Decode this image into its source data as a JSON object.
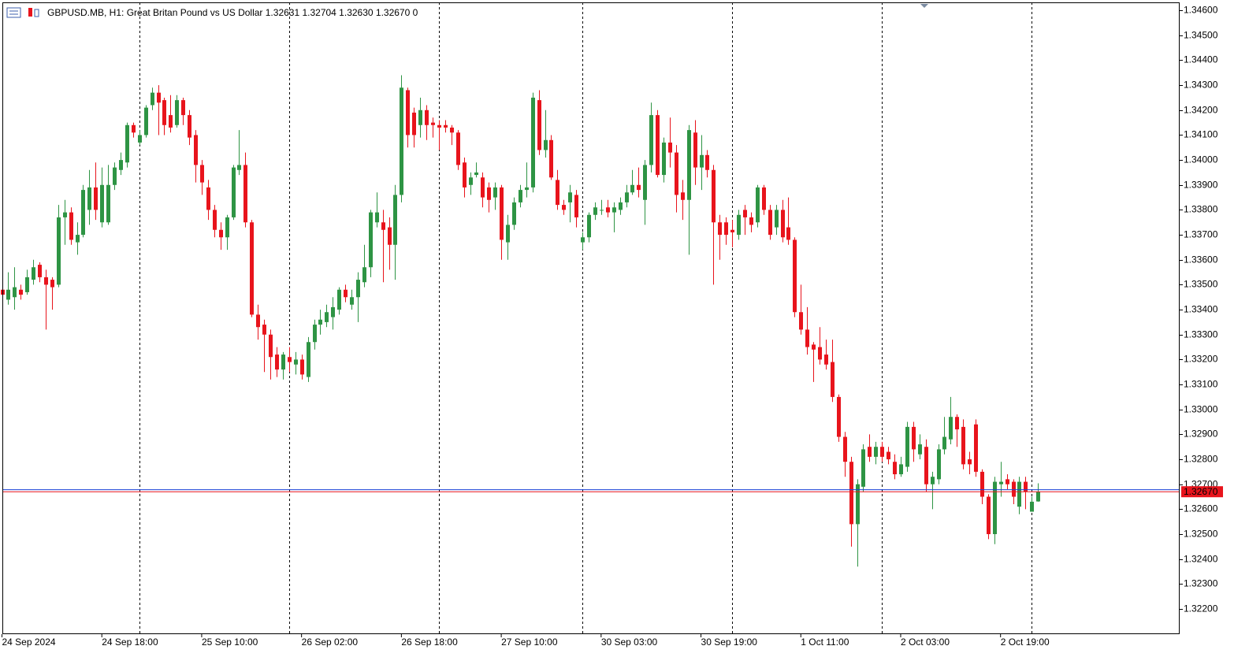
{
  "chart_data": {
    "type": "candlestick",
    "header": "GBPUSD.MB, H1:  Great Britan Pound vs US Dollar  1.32631 1.32704 1.32630 1.32670  0",
    "up_color": "#2e9444",
    "down_color": "#e8141c",
    "ylim": [
      1.32099,
      1.34632
    ],
    "yticks": [
      {
        "value": 1.346,
        "label": "1.34600"
      },
      {
        "value": 1.345,
        "label": "1.34500"
      },
      {
        "value": 1.344,
        "label": "1.34400"
      },
      {
        "value": 1.343,
        "label": "1.34300"
      },
      {
        "value": 1.342,
        "label": "1.34200"
      },
      {
        "value": 1.341,
        "label": "1.34100"
      },
      {
        "value": 1.34,
        "label": "1.34000"
      },
      {
        "value": 1.339,
        "label": "1.33900"
      },
      {
        "value": 1.338,
        "label": "1.33800"
      },
      {
        "value": 1.337,
        "label": "1.33700"
      },
      {
        "value": 1.336,
        "label": "1.33600"
      },
      {
        "value": 1.335,
        "label": "1.33500"
      },
      {
        "value": 1.334,
        "label": "1.33400"
      },
      {
        "value": 1.333,
        "label": "1.33300"
      },
      {
        "value": 1.332,
        "label": "1.33200"
      },
      {
        "value": 1.331,
        "label": "1.33100"
      },
      {
        "value": 1.33,
        "label": "1.33000"
      },
      {
        "value": 1.329,
        "label": "1.32900"
      },
      {
        "value": 1.328,
        "label": "1.32800"
      },
      {
        "value": 1.327,
        "label": "1.32700"
      },
      {
        "value": 1.326,
        "label": "1.32600"
      },
      {
        "value": 1.325,
        "label": "1.32500"
      },
      {
        "value": 1.324,
        "label": "1.32400"
      },
      {
        "value": 1.323,
        "label": "1.32300"
      },
      {
        "value": 1.322,
        "label": "1.32200"
      }
    ],
    "bid_line": {
      "value": 1.3267,
      "label": "1.32670",
      "color": "#e8141c"
    },
    "ask_line": {
      "value": 1.32678,
      "color": "#1a3fd6"
    },
    "categories": [
      "24 Sep 2024",
      null,
      null,
      null,
      null,
      null,
      null,
      null,
      null,
      null,
      null,
      null,
      null,
      null,
      null,
      null,
      "24 Sep 18:00",
      null,
      null,
      null,
      null,
      null,
      null,
      null,
      null,
      null,
      null,
      null,
      null,
      null,
      null,
      null,
      "25 Sep 10:00",
      null,
      null,
      null,
      null,
      null,
      null,
      null,
      null,
      null,
      null,
      null,
      null,
      null,
      null,
      null,
      "26 Sep 02:00",
      null,
      null,
      null,
      null,
      null,
      null,
      null,
      null,
      null,
      null,
      null,
      null,
      null,
      null,
      null,
      "26 Sep 18:00",
      null,
      null,
      null,
      null,
      null,
      null,
      null,
      null,
      null,
      null,
      null,
      null,
      null,
      null,
      null,
      "27 Sep 10:00",
      null,
      null,
      null,
      null,
      null,
      null,
      null,
      null,
      null,
      null,
      null,
      null,
      null,
      null,
      null,
      "30 Sep 03:00",
      null,
      null,
      null,
      null,
      null,
      null,
      null,
      null,
      null,
      null,
      null,
      null,
      null,
      null,
      null,
      "30 Sep 19:00",
      null,
      null,
      null,
      null,
      null,
      null,
      null,
      null,
      null,
      null,
      null,
      null,
      null,
      null,
      null,
      "1 Oct 11:00",
      null,
      null,
      null,
      null,
      null,
      null,
      null,
      null,
      null,
      null,
      null,
      null,
      null,
      null,
      null,
      "2 Oct 03:00",
      null,
      null,
      null,
      null,
      null,
      null,
      null,
      null,
      null,
      null,
      null,
      null,
      null,
      null,
      null,
      "2 Oct 19:00",
      null,
      null,
      null,
      null,
      null,
      null
    ],
    "open": [
      1.3348,
      1.3344,
      1.3345,
      1.3348,
      1.3347,
      1.3352,
      1.3358,
      1.3353,
      1.3352,
      1.335,
      1.3377,
      1.3379,
      1.3367,
      1.337,
      1.338,
      1.3389,
      1.3375,
      1.3375,
      1.339,
      1.3396,
      1.3399,
      1.3414,
      1.3407,
      1.341,
      1.3422,
      1.3427,
      1.3424,
      1.3418,
      1.3414,
      1.3424,
      1.3418,
      1.341,
      1.3398,
      1.3389,
      1.338,
      1.3372,
      1.3369,
      1.3377,
      1.3396,
      1.3398,
      1.3375,
      1.3338,
      1.3334,
      1.333,
      1.3322,
      1.3316,
      1.3321,
      1.3318,
      1.332,
      1.3313,
      1.3327,
      1.3334,
      1.3335,
      1.3337,
      1.334,
      1.3348,
      1.3342,
      1.3345,
      1.3351,
      1.3357,
      1.3375,
      1.3375,
      1.3373,
      1.3366,
      1.3386,
      1.3428,
      1.3419,
      1.3414,
      1.342,
      1.3415,
      1.3414,
      1.3414,
      1.3413,
      1.3411,
      1.3399,
      1.339,
      1.3394,
      1.3393,
      1.3389,
      1.3385,
      1.3389,
      1.3367,
      1.3374,
      1.3383,
      1.3388,
      1.3389,
      1.3424,
      1.3404,
      1.3408,
      1.3392,
      1.3382,
      1.3383,
      1.3386,
      1.3367,
      1.3369,
      1.3378,
      1.338,
      1.3381,
      1.3379,
      1.338,
      1.3383,
      1.3387,
      1.339,
      1.3384,
      1.3398,
      1.3418,
      1.3394,
      1.3407,
      1.3403,
      1.3387,
      1.3384,
      1.3411,
      1.3397,
      1.3402,
      1.3396,
      1.3375,
      1.3375,
      1.3372,
      1.337,
      1.338,
      1.3377,
      1.3375,
      1.3389,
      1.338,
      1.3373,
      1.338,
      1.3373,
      1.3368,
      1.3339,
      1.3332,
      1.3326,
      1.3325,
      1.3322,
      1.3319,
      1.3305,
      1.3289,
      1.3279,
      1.3254,
      1.3269,
      1.3285,
      1.3281,
      1.3285,
      1.3283,
      1.3279,
      1.3274,
      1.3277,
      1.3293,
      1.3282,
      1.3285,
      1.327,
      1.3272,
      1.3284,
      1.3288,
      1.3297,
      1.3293,
      1.328,
      1.3294,
      1.3275,
      1.3265,
      1.325,
      1.327,
      1.3272,
      1.3271,
      1.3261,
      1.3271,
      1.3259,
      1.32631
    ],
    "high": [
      1.335,
      1.3355,
      1.3357,
      1.335,
      1.3356,
      1.336,
      1.3359,
      1.3356,
      1.3353,
      1.3382,
      1.3384,
      1.3381,
      1.3375,
      1.339,
      1.3396,
      1.3399,
      1.3397,
      1.3398,
      1.3399,
      1.3403,
      1.3415,
      1.3415,
      1.3412,
      1.3422,
      1.3429,
      1.343,
      1.3425,
      1.3426,
      1.3426,
      1.3425,
      1.342,
      1.3412,
      1.34,
      1.3392,
      1.3382,
      1.3375,
      1.3378,
      1.3398,
      1.3412,
      1.3403,
      1.3376,
      1.3342,
      1.3336,
      1.3332,
      1.3325,
      1.3323,
      1.3325,
      1.3323,
      1.3322,
      1.3329,
      1.3336,
      1.334,
      1.3342,
      1.3345,
      1.3349,
      1.335,
      1.3348,
      1.3355,
      1.3366,
      1.338,
      1.3387,
      1.338,
      1.3377,
      1.339,
      1.3434,
      1.3429,
      1.3421,
      1.3425,
      1.3422,
      1.3417,
      1.3416,
      1.3416,
      1.3414,
      1.3412,
      1.3401,
      1.3395,
      1.3399,
      1.3395,
      1.3391,
      1.3391,
      1.339,
      1.3378,
      1.3385,
      1.339,
      1.3399,
      1.3427,
      1.3428,
      1.342,
      1.341,
      1.3396,
      1.3384,
      1.339,
      1.3388,
      1.3371,
      1.3379,
      1.3383,
      1.3384,
      1.3384,
      1.3383,
      1.3385,
      1.339,
      1.3396,
      1.3397,
      1.34,
      1.3423,
      1.342,
      1.3409,
      1.3417,
      1.3406,
      1.3392,
      1.3414,
      1.3416,
      1.341,
      1.3404,
      1.3398,
      1.3378,
      1.3377,
      1.3376,
      1.338,
      1.3382,
      1.3379,
      1.339,
      1.339,
      1.3382,
      1.3382,
      1.3384,
      1.3385,
      1.3369,
      1.335,
      1.3341,
      1.3327,
      1.3333,
      1.3328,
      1.3328,
      1.3306,
      1.3291,
      1.3281,
      1.3272,
      1.3286,
      1.329,
      1.3287,
      1.3287,
      1.3285,
      1.3282,
      1.3281,
      1.3295,
      1.3295,
      1.329,
      1.3288,
      1.3275,
      1.3286,
      1.3297,
      1.3305,
      1.3298,
      1.3296,
      1.3283,
      1.3296,
      1.3276,
      1.3266,
      1.3273,
      1.3279,
      1.3274,
      1.3272,
      1.3273,
      1.3273,
      1.3265,
      1.32704
    ],
    "low": [
      1.3341,
      1.3342,
      1.334,
      1.3344,
      1.3346,
      1.335,
      1.3351,
      1.3332,
      1.334,
      1.3349,
      1.3366,
      1.3366,
      1.3362,
      1.3369,
      1.3374,
      1.3376,
      1.3373,
      1.3374,
      1.3388,
      1.3394,
      1.3397,
      1.3409,
      1.3406,
      1.3409,
      1.342,
      1.341,
      1.341,
      1.3411,
      1.3413,
      1.3414,
      1.3406,
      1.3391,
      1.3386,
      1.3376,
      1.3369,
      1.3364,
      1.3364,
      1.3376,
      1.3394,
      1.3373,
      1.3337,
      1.3328,
      1.3315,
      1.3312,
      1.3313,
      1.3312,
      1.3315,
      1.3314,
      1.3312,
      1.3311,
      1.3324,
      1.333,
      1.3333,
      1.3332,
      1.3338,
      1.3343,
      1.334,
      1.3335,
      1.3349,
      1.3353,
      1.3373,
      1.3351,
      1.3356,
      1.3352,
      1.3383,
      1.3405,
      1.3405,
      1.3409,
      1.3408,
      1.3409,
      1.3404,
      1.3411,
      1.3406,
      1.3396,
      1.3385,
      1.3386,
      1.3393,
      1.3381,
      1.3379,
      1.338,
      1.336,
      1.336,
      1.3372,
      1.3381,
      1.3385,
      1.3387,
      1.3402,
      1.3401,
      1.3392,
      1.338,
      1.3378,
      1.3375,
      1.3373,
      1.3364,
      1.3367,
      1.3376,
      1.3378,
      1.3377,
      1.3371,
      1.3378,
      1.3381,
      1.3386,
      1.3385,
      1.3374,
      1.3395,
      1.3393,
      1.3391,
      1.3397,
      1.3379,
      1.3376,
      1.3362,
      1.339,
      1.3388,
      1.3393,
      1.335,
      1.336,
      1.3366,
      1.3365,
      1.3368,
      1.337,
      1.3371,
      1.3373,
      1.3378,
      1.3368,
      1.337,
      1.3367,
      1.3366,
      1.3337,
      1.333,
      1.3322,
      1.3311,
      1.3318,
      1.3316,
      1.3303,
      1.3287,
      1.3273,
      1.3245,
      1.3237,
      1.3267,
      1.3279,
      1.3278,
      1.3279,
      1.3278,
      1.3272,
      1.3273,
      1.3275,
      1.3279,
      1.328,
      1.3267,
      1.326,
      1.327,
      1.3282,
      1.3286,
      1.3285,
      1.3276,
      1.3274,
      1.3273,
      1.3262,
      1.3248,
      1.3246,
      1.3265,
      1.3268,
      1.3262,
      1.3258,
      1.326,
      1.3259,
      1.3263
    ],
    "close": [
      1.3346,
      1.3348,
      1.3349,
      1.3346,
      1.3353,
      1.3357,
      1.3353,
      1.335,
      1.3349,
      1.3377,
      1.3379,
      1.3368,
      1.337,
      1.3388,
      1.3389,
      1.338,
      1.339,
      1.339,
      1.3397,
      1.34,
      1.3414,
      1.3411,
      1.341,
      1.3421,
      1.3427,
      1.3423,
      1.3414,
      1.3413,
      1.3424,
      1.3418,
      1.3409,
      1.3398,
      1.3391,
      1.338,
      1.3372,
      1.3369,
      1.3377,
      1.3397,
      1.3398,
      1.3375,
      1.3338,
      1.3333,
      1.333,
      1.3321,
      1.3316,
      1.3322,
      1.3319,
      1.332,
      1.3314,
      1.3327,
      1.3334,
      1.3336,
      1.3339,
      1.3341,
      1.3348,
      1.3345,
      1.3345,
      1.3352,
      1.3357,
      1.3379,
      1.3379,
      1.3372,
      1.3366,
      1.3386,
      1.3429,
      1.341,
      1.341,
      1.342,
      1.3414,
      1.3414,
      1.3413,
      1.3413,
      1.3411,
      1.3398,
      1.3389,
      1.3393,
      1.3395,
      1.3385,
      1.3384,
      1.3389,
      1.3368,
      1.3374,
      1.3383,
      1.3388,
      1.3389,
      1.3425,
      1.3404,
      1.3408,
      1.3393,
      1.3382,
      1.338,
      1.3387,
      1.3377,
      1.3369,
      1.3378,
      1.3381,
      1.338,
      1.3379,
      1.3381,
      1.3383,
      1.3387,
      1.339,
      1.3388,
      1.3398,
      1.3418,
      1.3394,
      1.3407,
      1.3403,
      1.3386,
      1.3384,
      1.3412,
      1.3397,
      1.3402,
      1.3396,
      1.3375,
      1.337,
      1.337,
      1.3371,
      1.3378,
      1.3377,
      1.3374,
      1.3389,
      1.338,
      1.337,
      1.338,
      1.3369,
      1.3368,
      1.3339,
      1.3332,
      1.3325,
      1.3324,
      1.332,
      1.3318,
      1.3305,
      1.3289,
      1.3279,
      1.3254,
      1.327,
      1.3284,
      1.3281,
      1.3285,
      1.3281,
      1.328,
      1.3274,
      1.3278,
      1.3293,
      1.3284,
      1.3286,
      1.327,
      1.3273,
      1.3284,
      1.3289,
      1.3297,
      1.3292,
      1.3278,
      1.3278,
      1.3275,
      1.3265,
      1.325,
      1.3271,
      1.3271,
      1.327,
      1.3265,
      1.3271,
      1.3267,
      1.3263,
      1.3267
    ]
  }
}
